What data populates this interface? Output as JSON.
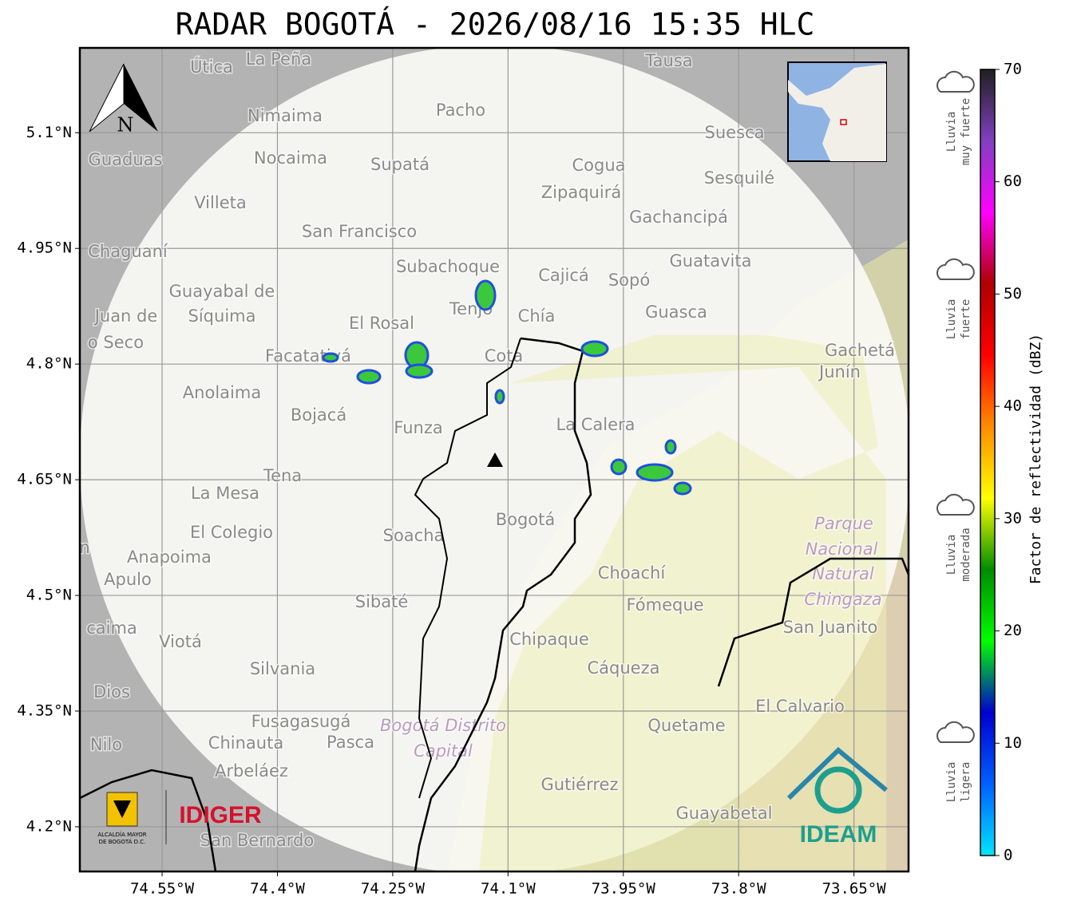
{
  "title": "RADAR BOGOTÁ - 2026/08/16 15:35 HLC",
  "north_label": "N",
  "map": {
    "xlim": [
      -74.657,
      -73.579
    ],
    "ylim": [
      4.142,
      5.21
    ],
    "lat_ticks": [
      {
        "value": 5.1,
        "label": "5.1°N"
      },
      {
        "value": 4.95,
        "label": "4.95°N"
      },
      {
        "value": 4.8,
        "label": "4.8°N"
      },
      {
        "value": 4.65,
        "label": "4.65°N"
      },
      {
        "value": 4.5,
        "label": "4.5°N"
      },
      {
        "value": 4.35,
        "label": "4.35°N"
      },
      {
        "value": 4.2,
        "label": "4.2°N"
      }
    ],
    "lon_ticks": [
      {
        "value": -74.55,
        "label": "74.55°W"
      },
      {
        "value": -74.4,
        "label": "74.4°W"
      },
      {
        "value": -74.25,
        "label": "74.25°W"
      },
      {
        "value": -74.1,
        "label": "74.1°W"
      },
      {
        "value": -73.95,
        "label": "73.95°W"
      },
      {
        "value": -73.8,
        "label": "73.8°W"
      },
      {
        "value": -73.65,
        "label": "73.65°W"
      }
    ],
    "grid": true,
    "places": [
      "La Peña",
      "Útica",
      "Tausa",
      "Pacho",
      "Nimaima",
      "Guaduas",
      "Nocaima",
      "Supatá",
      "Cogua",
      "Suesca",
      "Sesquilé",
      "Zipaquirá",
      "Villeta",
      "Gachancipá",
      "San Francisco",
      "Chaguaní",
      "Subachoque",
      "Guatavita",
      "Cajicá",
      "Sopó",
      "Guayabal de",
      "Síquima",
      "Juan de",
      "o Seco",
      "Tenjo",
      "Chía",
      "Guasca",
      "El Rosal",
      "Facatativá",
      "Cota",
      "Gachetá",
      "Junín",
      "Anolaima",
      "Bojacá",
      "Funza",
      "La Calera",
      "Tena",
      "La Mesa",
      "El Colegio",
      "Bogotá",
      "Soacha",
      "Parque",
      "Nacional",
      "Natural",
      "Chingaza",
      "Anapoima",
      "Apulo",
      "Choachí",
      "Fómeque",
      "Sibaté",
      "San Juanito",
      "caima",
      "Viotá",
      "Chipaque",
      "Cáqueza",
      "Silvania",
      "Dios",
      "El Calvario",
      "Fusagasugá",
      "Bogotá Distrito",
      "Capital",
      "Quetame",
      "Nilo",
      "Chinauta",
      "Pasca",
      "Arbeláez",
      "Gutiérrez",
      "Guayabetal",
      "San Bernardo",
      "n"
    ]
  },
  "colorbar": {
    "label": "Factor de reflectividad (dBZ)",
    "ylim": [
      0,
      70
    ],
    "yticks": [
      0,
      10,
      20,
      30,
      40,
      50,
      60,
      70
    ],
    "colors": [
      "#00e5ff",
      "#0060ff",
      "#0000d0",
      "#00ff00",
      "#008c00",
      "#ffff00",
      "#ff8c00",
      "#ff0000",
      "#b00000",
      "#ff00ff",
      "#8040c0",
      "#202020"
    ]
  },
  "rain_levels": [
    {
      "lines": [
        "Lluvia",
        "muy fuerte"
      ]
    },
    {
      "lines": [
        "Lluvia",
        "fuerte"
      ]
    },
    {
      "lines": [
        "Lluvia",
        "moderada"
      ]
    },
    {
      "lines": [
        "Lluvia",
        "ligera"
      ]
    }
  ],
  "logos": {
    "alcaldia": [
      "ALCALDÍA MAYOR",
      "DE BOGOTÁ D.C."
    ],
    "idiger": "IDIGER",
    "ideam": "IDEAM"
  }
}
